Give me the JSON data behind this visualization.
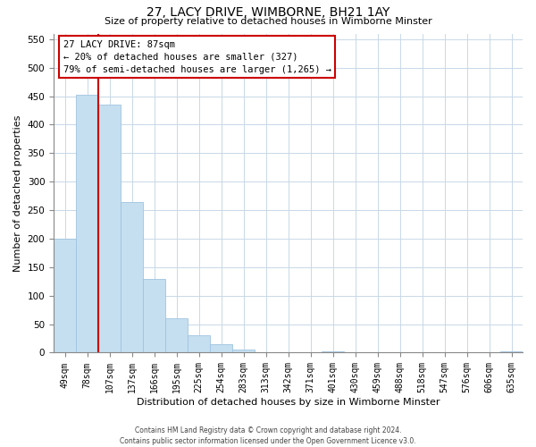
{
  "title": "27, LACY DRIVE, WIMBORNE, BH21 1AY",
  "subtitle": "Size of property relative to detached houses in Wimborne Minster",
  "xlabel": "Distribution of detached houses by size in Wimborne Minster",
  "ylabel": "Number of detached properties",
  "bar_labels": [
    "49sqm",
    "78sqm",
    "107sqm",
    "137sqm",
    "166sqm",
    "195sqm",
    "225sqm",
    "254sqm",
    "283sqm",
    "313sqm",
    "342sqm",
    "371sqm",
    "401sqm",
    "430sqm",
    "459sqm",
    "488sqm",
    "518sqm",
    "547sqm",
    "576sqm",
    "606sqm",
    "635sqm"
  ],
  "bar_values": [
    200,
    452,
    435,
    265,
    130,
    60,
    30,
    15,
    5,
    0,
    0,
    0,
    2,
    0,
    0,
    0,
    0,
    0,
    0,
    0,
    3
  ],
  "bar_color": "#c5dff0",
  "bar_edgecolor": "#a0c4e0",
  "vline_color": "#cc0000",
  "vline_x_idx": 2,
  "ylim_max": 560,
  "yticks": [
    0,
    50,
    100,
    150,
    200,
    250,
    300,
    350,
    400,
    450,
    500,
    550
  ],
  "annotation_title": "27 LACY DRIVE: 87sqm",
  "annotation_line1": "← 20% of detached houses are smaller (327)",
  "annotation_line2": "79% of semi-detached houses are larger (1,265) →",
  "footer_line1": "Contains HM Land Registry data © Crown copyright and database right 2024.",
  "footer_line2": "Contains public sector information licensed under the Open Government Licence v3.0.",
  "background_color": "#ffffff",
  "grid_color": "#c8d8e8",
  "title_fontsize": 10,
  "subtitle_fontsize": 8,
  "ylabel_fontsize": 8,
  "xlabel_fontsize": 8,
  "tick_fontsize": 7,
  "ann_fontsize": 7.5,
  "footer_fontsize": 5.5
}
